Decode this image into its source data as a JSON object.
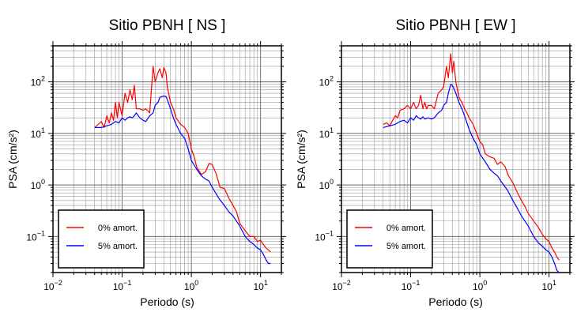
{
  "chart_data": [
    {
      "type": "line",
      "title": "Sitio PBNH [ NS ]",
      "xlabel": "Periodo (s)",
      "ylabel": "PSA (cm/s²)",
      "xscale": "log",
      "yscale": "log",
      "xlim": [
        0.01,
        20
      ],
      "ylim": [
        0.02,
        500
      ],
      "grid": true,
      "legend_position": "bottom-left",
      "x_ticks": [
        {
          "value": 0.01,
          "base": "10",
          "exp": "−2"
        },
        {
          "value": 0.1,
          "base": "10",
          "exp": "−1"
        },
        {
          "value": 1,
          "base": "10",
          "exp": "0"
        },
        {
          "value": 10,
          "base": "10",
          "exp": "1"
        }
      ],
      "y_ticks": [
        {
          "value": 0.1,
          "base": "10",
          "exp": "−1"
        },
        {
          "value": 1,
          "base": "10",
          "exp": "0"
        },
        {
          "value": 10,
          "base": "10",
          "exp": "1"
        },
        {
          "value": 100,
          "base": "10",
          "exp": "2"
        }
      ],
      "series": [
        {
          "name": "0% amort.",
          "color": "#ff0000",
          "x": [
            0.04,
            0.045,
            0.05,
            0.055,
            0.06,
            0.065,
            0.07,
            0.075,
            0.08,
            0.085,
            0.09,
            0.1,
            0.11,
            0.12,
            0.13,
            0.14,
            0.15,
            0.16,
            0.18,
            0.2,
            0.22,
            0.25,
            0.28,
            0.3,
            0.33,
            0.35,
            0.38,
            0.4,
            0.43,
            0.45,
            0.5,
            0.55,
            0.6,
            0.7,
            0.8,
            0.9,
            1.0,
            1.1,
            1.2,
            1.4,
            1.6,
            1.8,
            2.0,
            2.3,
            2.6,
            3.0,
            3.5,
            4.0,
            4.5,
            5.0,
            6.0,
            7.0,
            8.0,
            9.0,
            10.0,
            11.0,
            12.0,
            13.0,
            14.0
          ],
          "y": [
            13,
            15,
            17,
            13,
            22,
            16,
            25,
            18,
            40,
            20,
            40,
            22,
            60,
            40,
            70,
            45,
            85,
            30,
            30,
            28,
            30,
            25,
            200,
            100,
            150,
            180,
            120,
            190,
            150,
            80,
            40,
            30,
            20,
            15,
            13,
            10,
            5,
            3.5,
            2.2,
            1.6,
            1.8,
            2.6,
            2.5,
            1.6,
            0.9,
            0.85,
            0.55,
            0.4,
            0.3,
            0.18,
            0.13,
            0.1,
            0.1,
            0.08,
            0.085,
            0.07,
            0.06,
            0.055,
            0.05
          ]
        },
        {
          "name": "5% amort.",
          "color": "#0000ff",
          "x": [
            0.04,
            0.05,
            0.06,
            0.07,
            0.08,
            0.09,
            0.1,
            0.11,
            0.12,
            0.13,
            0.14,
            0.15,
            0.16,
            0.18,
            0.2,
            0.22,
            0.25,
            0.28,
            0.3,
            0.33,
            0.35,
            0.38,
            0.4,
            0.43,
            0.45,
            0.5,
            0.55,
            0.6,
            0.7,
            0.8,
            0.9,
            1.0,
            1.2,
            1.4,
            1.6,
            1.8,
            2.0,
            2.5,
            3.0,
            3.5,
            4.0,
            5.0,
            6.0,
            7.0,
            8.0,
            9.0,
            10.0,
            11.0,
            12.0,
            13.0,
            14.0
          ],
          "y": [
            13,
            13,
            14,
            15,
            17,
            16,
            20,
            18,
            20,
            21,
            20,
            22,
            25,
            20,
            18,
            17,
            22,
            25,
            35,
            40,
            50,
            52,
            53,
            52,
            45,
            30,
            20,
            15,
            10,
            8,
            5,
            3,
            2,
            1.5,
            1.3,
            1.2,
            0.9,
            0.55,
            0.4,
            0.3,
            0.25,
            0.16,
            0.1,
            0.08,
            0.07,
            0.06,
            0.055,
            0.045,
            0.035,
            0.03,
            0.03
          ]
        }
      ]
    },
    {
      "type": "line",
      "title": "Sitio PBNH [ EW ]",
      "xlabel": "Periodo (s)",
      "ylabel": "PSA (cm/s²)",
      "xscale": "log",
      "yscale": "log",
      "xlim": [
        0.01,
        20
      ],
      "ylim": [
        0.02,
        500
      ],
      "grid": true,
      "legend_position": "bottom-left",
      "x_ticks": [
        {
          "value": 0.01,
          "base": "10",
          "exp": "−2"
        },
        {
          "value": 0.1,
          "base": "10",
          "exp": "−1"
        },
        {
          "value": 1,
          "base": "10",
          "exp": "0"
        },
        {
          "value": 10,
          "base": "10",
          "exp": "1"
        }
      ],
      "y_ticks": [
        {
          "value": 0.1,
          "base": "10",
          "exp": "−1"
        },
        {
          "value": 1,
          "base": "10",
          "exp": "0"
        },
        {
          "value": 10,
          "base": "10",
          "exp": "1"
        },
        {
          "value": 100,
          "base": "10",
          "exp": "2"
        }
      ],
      "series": [
        {
          "name": "0% amort.",
          "color": "#ff0000",
          "x": [
            0.04,
            0.045,
            0.05,
            0.055,
            0.06,
            0.065,
            0.07,
            0.08,
            0.09,
            0.1,
            0.11,
            0.12,
            0.13,
            0.14,
            0.15,
            0.16,
            0.17,
            0.18,
            0.2,
            0.22,
            0.25,
            0.28,
            0.3,
            0.33,
            0.35,
            0.38,
            0.4,
            0.42,
            0.45,
            0.5,
            0.55,
            0.6,
            0.65,
            0.7,
            0.8,
            0.9,
            1.0,
            1.1,
            1.2,
            1.4,
            1.6,
            1.8,
            2.0,
            2.3,
            2.6,
            3.0,
            3.5,
            4.0,
            4.5,
            5.0,
            6.0,
            7.0,
            8.0,
            9.0,
            10.0,
            11.0,
            12.0,
            13.0,
            14.0
          ],
          "y": [
            15,
            16,
            14,
            18,
            22,
            20,
            28,
            30,
            35,
            30,
            40,
            30,
            35,
            55,
            30,
            40,
            30,
            35,
            35,
            30,
            60,
            70,
            80,
            200,
            120,
            350,
            150,
            250,
            100,
            50,
            40,
            30,
            25,
            20,
            15,
            10,
            7,
            6,
            4,
            3.5,
            3.3,
            2.5,
            2.8,
            2.3,
            1.5,
            1.1,
            0.7,
            0.5,
            0.38,
            0.28,
            0.2,
            0.15,
            0.11,
            0.09,
            0.08,
            0.06,
            0.05,
            0.04,
            0.035
          ]
        },
        {
          "name": "5% amort.",
          "color": "#0000ff",
          "x": [
            0.04,
            0.05,
            0.06,
            0.07,
            0.08,
            0.09,
            0.1,
            0.11,
            0.12,
            0.13,
            0.14,
            0.15,
            0.16,
            0.18,
            0.2,
            0.22,
            0.25,
            0.28,
            0.3,
            0.33,
            0.35,
            0.38,
            0.4,
            0.43,
            0.45,
            0.5,
            0.55,
            0.6,
            0.7,
            0.8,
            0.9,
            1.0,
            1.2,
            1.4,
            1.6,
            1.8,
            2.0,
            2.5,
            3.0,
            3.5,
            4.0,
            5.0,
            6.0,
            7.0,
            8.0,
            9.0,
            10.0,
            11.0,
            12.0,
            13.0,
            14.0
          ],
          "y": [
            13,
            14,
            15,
            17,
            18,
            16,
            20,
            18,
            22,
            20,
            19,
            21,
            19,
            20,
            19,
            20,
            25,
            28,
            35,
            40,
            60,
            90,
            85,
            70,
            60,
            40,
            30,
            22,
            12,
            8,
            6,
            4,
            2.8,
            2,
            1.7,
            1.5,
            1.2,
            0.8,
            0.5,
            0.35,
            0.25,
            0.16,
            0.1,
            0.075,
            0.065,
            0.055,
            0.05,
            0.04,
            0.03,
            0.022,
            0.02
          ]
        }
      ]
    }
  ]
}
